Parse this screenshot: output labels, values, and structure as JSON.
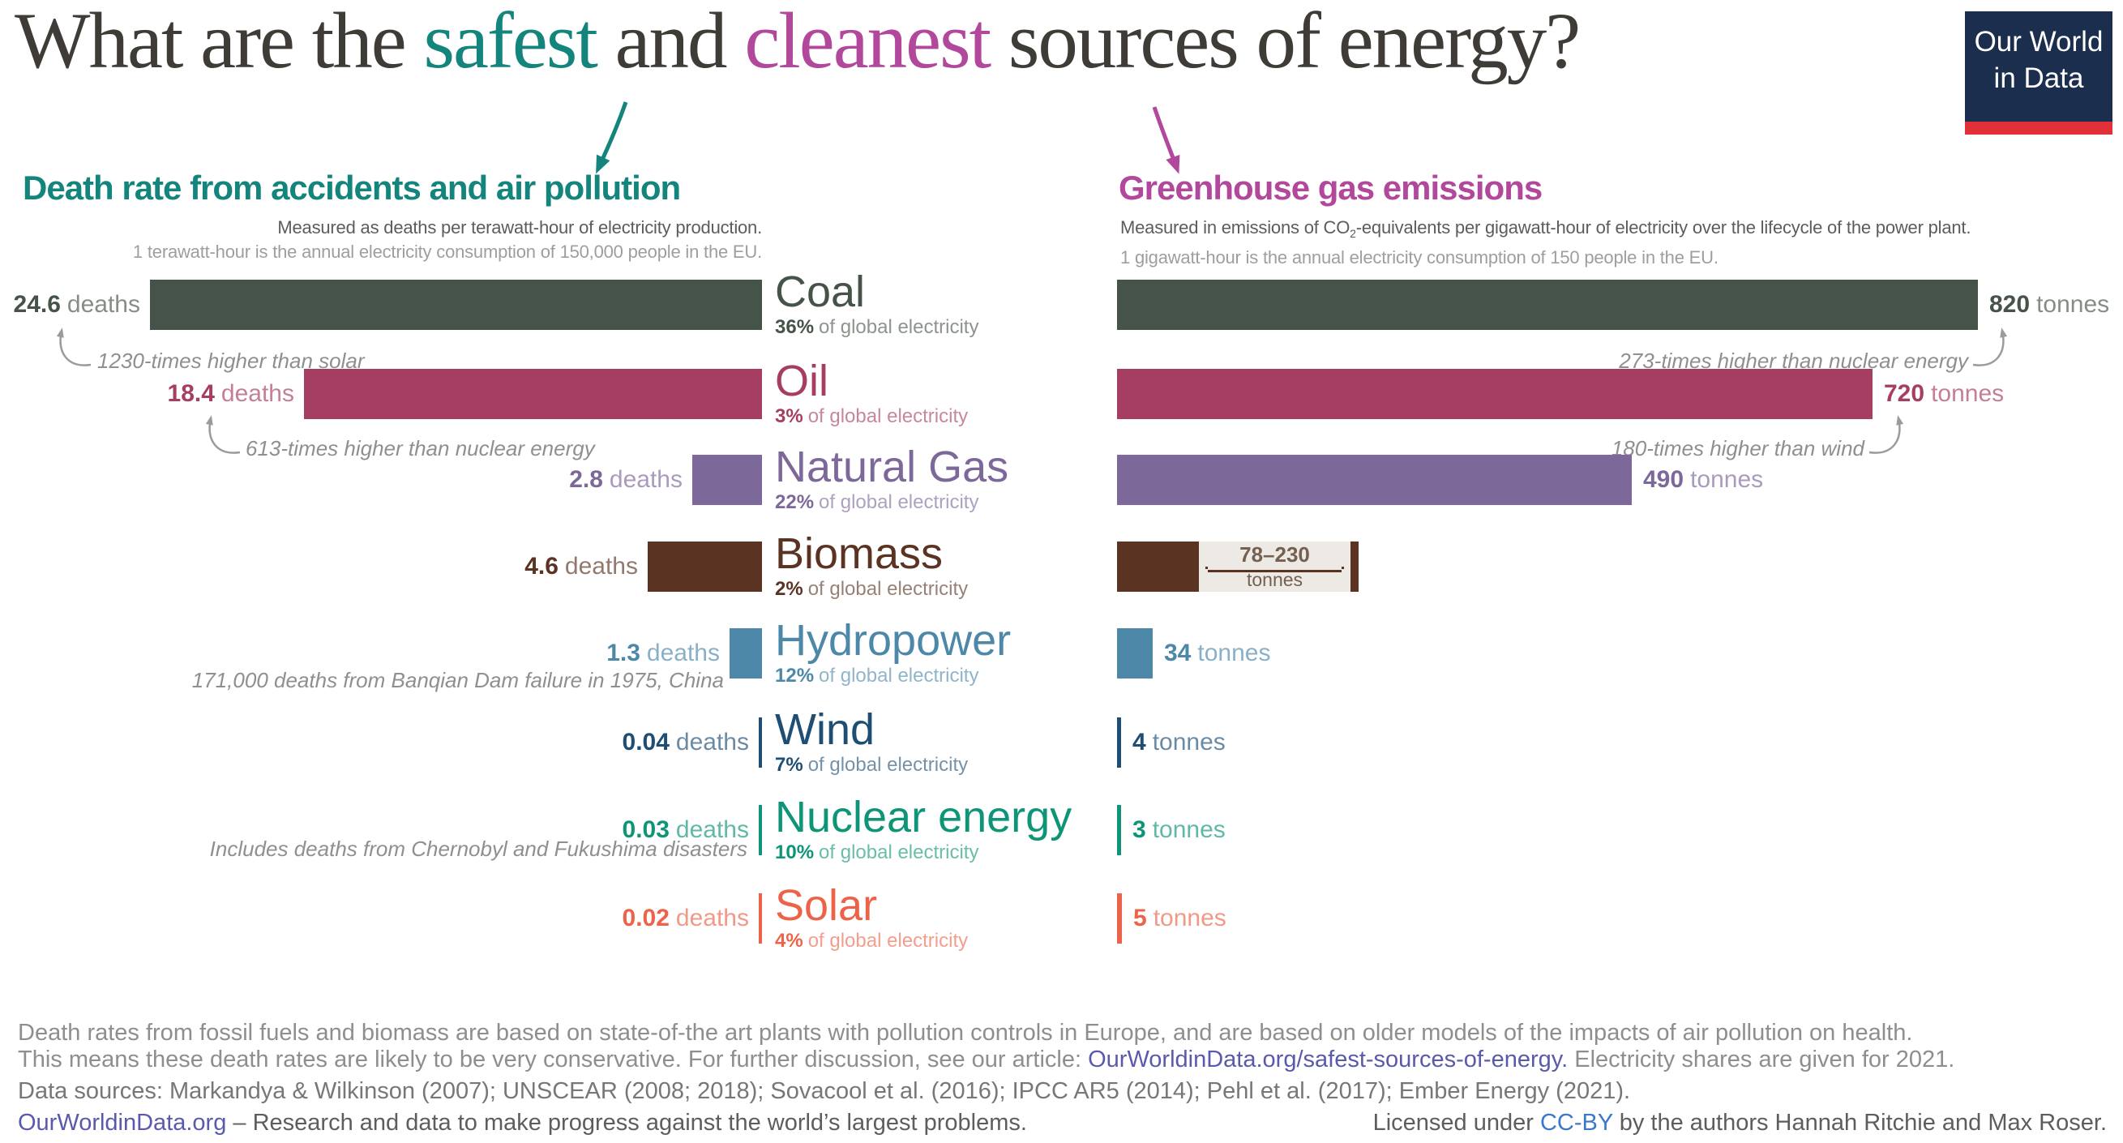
{
  "title": {
    "pre": "What are the ",
    "safest": "safest",
    "and": " and ",
    "cleanest": "cleanest",
    "post": " sources of energy?"
  },
  "logo": {
    "line1": "Our World",
    "line2": "in Data"
  },
  "left": {
    "heading": "Death rate from accidents and air pollution",
    "subtitle1": "Measured as deaths per terawatt-hour of electricity production.",
    "subtitle2": "1 terawatt-hour is the annual electricity consumption of 150,000 people in the EU."
  },
  "right": {
    "heading": "Greenhouse gas emissions",
    "subtitle1_pre": "Measured in emissions of CO",
    "subtitle1_sub": "2",
    "subtitle1_post": "-equivalents per gigawatt-hour of electricity over the lifecycle of the power plant.",
    "subtitle2": "1 gigawatt-hour is the annual electricity consumption of 150 people in the EU."
  },
  "units": {
    "deaths": "deaths",
    "tonnes": "tonnes"
  },
  "labels": {
    "share_suffix": "of global electricity"
  },
  "rows": [
    {
      "id": "coal",
      "name": "Coal",
      "share": "36%",
      "deaths_label": "24.6",
      "tonnes_label": "820",
      "color": "#465349",
      "note_left": "1230-times higher than solar",
      "note_right": "273-times higher than nuclear energy"
    },
    {
      "id": "oil",
      "name": "Oil",
      "share": "3%",
      "deaths_label": "18.4",
      "tonnes_label": "720",
      "color": "#a63d63",
      "note_left": "613-times higher than nuclear energy",
      "note_right": "180-times higher than wind"
    },
    {
      "id": "natural-gas",
      "name": "Natural Gas",
      "share": "22%",
      "deaths_label": "2.8",
      "tonnes_label": "490",
      "color": "#7d689a"
    },
    {
      "id": "biomass",
      "name": "Biomass",
      "share": "2%",
      "deaths_label": "4.6",
      "tonnes_label": null,
      "color": "#5a3322",
      "range_label": "78–230",
      "range_unit": "tonnes"
    },
    {
      "id": "hydropower",
      "name": "Hydropower",
      "share": "12%",
      "deaths_label": "1.3",
      "tonnes_label": "34",
      "color": "#4d88a9",
      "note_left": "171,000 deaths from Banqian Dam failure in 1975, China"
    },
    {
      "id": "wind",
      "name": "Wind",
      "share": "7%",
      "deaths_label": "0.04",
      "tonnes_label": "4",
      "color": "#1f4e74"
    },
    {
      "id": "nuclear",
      "name": "Nuclear energy",
      "share": "10%",
      "deaths_label": "0.03",
      "tonnes_label": "3",
      "color": "#0e9577",
      "note_left": "Includes deaths from Chernobyl and Fukushima disasters"
    },
    {
      "id": "solar",
      "name": "Solar",
      "share": "4%",
      "deaths_label": "0.02",
      "tonnes_label": "5",
      "color": "#ec6349"
    }
  ],
  "footer": {
    "f1": "Death rates from fossil fuels and biomass are based on state-of-the art plants with pollution controls in Europe, and are based on older models of the impacts of air pollution on health.",
    "f2_pre": "This means these death rates are likely to be very conservative. For further discussion, see our article: ",
    "f2_link": "OurWorldinData.org/safest-sources-of-energy.",
    "f2_post": " Electricity shares are given for 2021.",
    "f3": "Data sources: Markandya & Wilkinson (2007); UNSCEAR (2008; 2018); Sovacool et al. (2016); IPCC AR5 (2014); Pehl et al. (2017); Ember Energy (2021).",
    "f4_link": "OurWorldinData.org",
    "f4_rest": " – Research and data to make progress against the world’s largest problems.",
    "f4r_pre": "Licensed under ",
    "f4r_link": "CC-BY",
    "f4r_post": " by the authors Hannah Ritchie and Max Roser."
  },
  "chart_data": [
    {
      "type": "bar",
      "orientation": "horizontal",
      "title": "Death rate from accidents and air pollution",
      "unit": "deaths per terawatt-hour of electricity production",
      "categories": [
        "Coal",
        "Oil",
        "Natural Gas",
        "Biomass",
        "Hydropower",
        "Wind",
        "Nuclear energy",
        "Solar"
      ],
      "values": [
        24.6,
        18.4,
        2.8,
        4.6,
        1.3,
        0.04,
        0.03,
        0.02
      ],
      "value_labels": [
        "24.6 deaths",
        "18.4 deaths",
        "2.8 deaths",
        "4.6 deaths",
        "1.3 deaths",
        "0.04 deaths",
        "0.03 deaths",
        "0.02 deaths"
      ],
      "electricity_share_pct": [
        36,
        3,
        22,
        2,
        12,
        7,
        10,
        4
      ],
      "annotations": [
        "1230-times higher than solar",
        "613-times higher than nuclear energy",
        null,
        null,
        "171,000 deaths from Banqian Dam failure in 1975, China",
        null,
        "Includes deaths from Chernobyl and Fukushima disasters",
        null
      ],
      "xlim": [
        0,
        24.6
      ],
      "grid": false,
      "bar_colors": [
        "#465349",
        "#a63d63",
        "#7d689a",
        "#5a3322",
        "#4d88a9",
        "#1f4e74",
        "#0e9577",
        "#ec6349"
      ]
    },
    {
      "type": "bar",
      "orientation": "horizontal",
      "title": "Greenhouse gas emissions",
      "unit": "tonnes of CO2-equivalents per gigawatt-hour",
      "categories": [
        "Coal",
        "Oil",
        "Natural Gas",
        "Biomass",
        "Hydropower",
        "Wind",
        "Nuclear energy",
        "Solar"
      ],
      "values": [
        820,
        720,
        490,
        78,
        34,
        4,
        3,
        5
      ],
      "biomass_range": [
        78,
        230
      ],
      "value_labels": [
        "820 tonnes",
        "720 tonnes",
        "490 tonnes",
        "78–230 tonnes",
        "34 tonnes",
        "4 tonnes",
        "3 tonnes",
        "5 tonnes"
      ],
      "annotations": [
        "273-times higher than nuclear energy",
        "180-times higher than wind",
        null,
        null,
        null,
        null,
        null,
        null
      ],
      "xlim": [
        0,
        820
      ],
      "grid": false,
      "bar_colors": [
        "#465349",
        "#a63d63",
        "#7d689a",
        "#5a3322",
        "#4d88a9",
        "#1f4e74",
        "#0e9577",
        "#ec6349"
      ]
    }
  ]
}
